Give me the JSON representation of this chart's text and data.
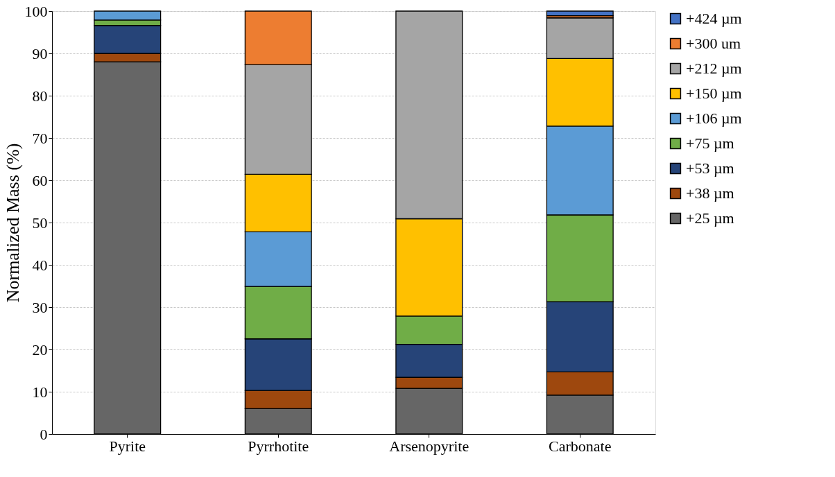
{
  "chart_data": {
    "type": "bar",
    "stacked": true,
    "ylabel": "Normalized Mass (%)",
    "categories": [
      "Pyrite",
      "Pyrrhotite",
      "Arsenopyrite",
      "Carbonate"
    ],
    "series": [
      {
        "name": "+25 µm",
        "color": "#666666",
        "values": [
          88.0,
          6.0,
          10.8,
          9.2
        ]
      },
      {
        "name": "+38 µm",
        "color": "#9e480e",
        "values": [
          2.0,
          4.3,
          2.6,
          5.5
        ]
      },
      {
        "name": "+53 µm",
        "color": "#264478",
        "values": [
          6.6,
          12.2,
          7.8,
          16.6
        ]
      },
      {
        "name": "+75 µm",
        "color": "#70ad47",
        "values": [
          1.3,
          12.4,
          6.7,
          20.5
        ]
      },
      {
        "name": "+106 µm",
        "color": "#5b9bd5",
        "values": [
          2.1,
          12.9,
          null,
          21.0
        ]
      },
      {
        "name": "+150 µm",
        "color": "#ffc000",
        "values": [
          null,
          13.6,
          23.0,
          16.0
        ]
      },
      {
        "name": "+212 µm",
        "color": "#a5a5a5",
        "values": [
          null,
          25.9,
          49.1,
          9.6
        ]
      },
      {
        "name": "+300 um",
        "color": "#ed7d31",
        "values": [
          null,
          12.7,
          null,
          0.5
        ]
      },
      {
        "name": "+424 µm",
        "color": "#4472c4",
        "values": [
          null,
          null,
          null,
          1.1
        ]
      }
    ],
    "ylim": [
      0,
      100
    ],
    "yticks": [
      0,
      10,
      20,
      30,
      40,
      50,
      60,
      70,
      80,
      90,
      100
    ],
    "grid": "y",
    "legend": "right"
  }
}
